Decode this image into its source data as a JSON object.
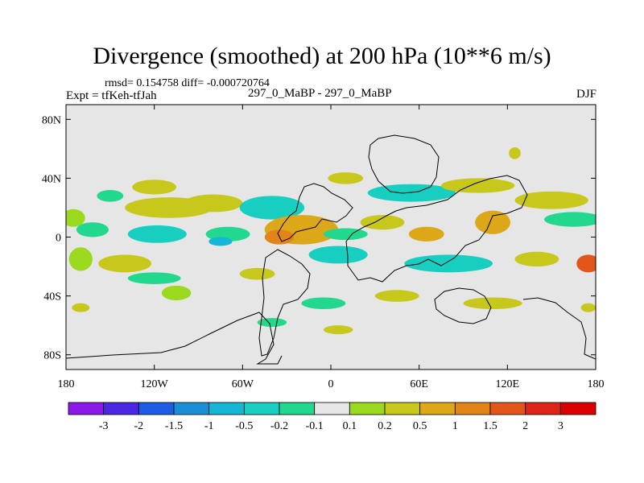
{
  "header": {
    "title": "Divergence (smoothed) at 200 hPa (10**6 m/s)",
    "stats": "rmsd= 0.154758 diff= -0.000720764",
    "experiment": "Expt = tfKeh-tfJah",
    "comparison": "297_0_MaBP - 297_0_MaBP",
    "season": "DJF"
  },
  "chart_data": {
    "type": "heatmap",
    "title": "Divergence (smoothed) at 200 hPa (10**6 m/s)",
    "xlabel": "",
    "ylabel": "",
    "xlim": [
      -180,
      180
    ],
    "ylim": [
      -90,
      90
    ],
    "x_ticks": [
      {
        "value": -180,
        "label": "180"
      },
      {
        "value": -120,
        "label": "120W"
      },
      {
        "value": -60,
        "label": "60W"
      },
      {
        "value": 0,
        "label": "0"
      },
      {
        "value": 60,
        "label": "60E"
      },
      {
        "value": 120,
        "label": "120E"
      },
      {
        "value": 180,
        "label": "180"
      }
    ],
    "y_ticks": [
      {
        "value": 80,
        "label": "80N"
      },
      {
        "value": 40,
        "label": "40N"
      },
      {
        "value": 0,
        "label": "0"
      },
      {
        "value": -40,
        "label": "40S"
      },
      {
        "value": -80,
        "label": "80S"
      }
    ],
    "background_color": "#e6e6e6",
    "colorbar": {
      "labels": [
        "-3",
        "-2",
        "-1.5",
        "-1",
        "-0.5",
        "-0.2",
        "-0.1",
        "0.1",
        "0.2",
        "0.5",
        "1",
        "1.5",
        "2",
        "3"
      ],
      "colors": [
        "#8b1ae8",
        "#4a27e0",
        "#1c5de4",
        "#1b8ed8",
        "#16b7d6",
        "#18cec0",
        "#22d88e",
        "#e6e6e6",
        "#9bd91f",
        "#c8c71c",
        "#dca81a",
        "#e2841a",
        "#e2561a",
        "#dc2518",
        "#d80000"
      ]
    },
    "anomaly_regions": [
      {
        "lon": -175,
        "lat": 13,
        "rlon": 8,
        "rlat": 6,
        "value": 0.15
      },
      {
        "lon": -162,
        "lat": 5,
        "rlon": 11,
        "rlat": 5,
        "value": -0.15
      },
      {
        "lon": -150,
        "lat": 28,
        "rlon": 9,
        "rlat": 4,
        "value": -0.15
      },
      {
        "lon": -120,
        "lat": 34,
        "rlon": 15,
        "rlat": 5,
        "value": 0.2
      },
      {
        "lon": -110,
        "lat": 20,
        "rlon": 30,
        "rlat": 7,
        "value": 0.35
      },
      {
        "lon": -118,
        "lat": 2,
        "rlon": 20,
        "rlat": 6,
        "value": -0.3
      },
      {
        "lon": -70,
        "lat": 2,
        "rlon": 15,
        "rlat": 5,
        "value": -0.2
      },
      {
        "lon": -75,
        "lat": -3,
        "rlon": 8,
        "rlat": 3,
        "value": -0.7
      },
      {
        "lon": -80,
        "lat": 23,
        "rlon": 20,
        "rlat": 6,
        "value": 0.35
      },
      {
        "lon": -40,
        "lat": 20,
        "rlon": 22,
        "rlat": 8,
        "value": -0.25
      },
      {
        "lon": -50,
        "lat": -25,
        "rlon": 12,
        "rlat": 4,
        "value": 0.3
      },
      {
        "lon": -140,
        "lat": -18,
        "rlon": 18,
        "rlat": 6,
        "value": 0.3
      },
      {
        "lon": -120,
        "lat": -28,
        "rlon": 18,
        "rlat": 4,
        "value": -0.15
      },
      {
        "lon": -105,
        "lat": -38,
        "rlon": 10,
        "rlat": 5,
        "value": 0.15
      },
      {
        "lon": -170,
        "lat": -15,
        "rlon": 8,
        "rlat": 8,
        "value": 0.15
      },
      {
        "lon": -20,
        "lat": 5,
        "rlon": 25,
        "rlat": 10,
        "value": 0.8
      },
      {
        "lon": -35,
        "lat": 0,
        "rlon": 10,
        "rlat": 5,
        "value": 1.1
      },
      {
        "lon": 10,
        "lat": 2,
        "rlon": 15,
        "rlat": 4,
        "value": -0.2
      },
      {
        "lon": 5,
        "lat": -12,
        "rlon": 20,
        "rlat": 6,
        "value": -0.3
      },
      {
        "lon": 35,
        "lat": 10,
        "rlon": 15,
        "rlat": 5,
        "value": 0.3
      },
      {
        "lon": 55,
        "lat": 30,
        "rlon": 30,
        "rlat": 6,
        "value": -0.3
      },
      {
        "lon": 10,
        "lat": 40,
        "rlon": 12,
        "rlat": 4,
        "value": 0.3
      },
      {
        "lon": 65,
        "lat": 2,
        "rlon": 12,
        "rlat": 5,
        "value": 0.7
      },
      {
        "lon": 80,
        "lat": -18,
        "rlon": 30,
        "rlat": 6,
        "value": -0.3
      },
      {
        "lon": 110,
        "lat": 10,
        "rlon": 12,
        "rlat": 8,
        "value": 0.5
      },
      {
        "lon": 100,
        "lat": 35,
        "rlon": 25,
        "rlat": 5,
        "value": 0.3
      },
      {
        "lon": 150,
        "lat": 25,
        "rlon": 25,
        "rlat": 6,
        "value": 0.2
      },
      {
        "lon": 165,
        "lat": 12,
        "rlon": 20,
        "rlat": 5,
        "value": -0.15
      },
      {
        "lon": 140,
        "lat": -15,
        "rlon": 15,
        "rlat": 5,
        "value": 0.3
      },
      {
        "lon": 175,
        "lat": -18,
        "rlon": 8,
        "rlat": 6,
        "value": 1.5
      },
      {
        "lon": 45,
        "lat": -40,
        "rlon": 15,
        "rlat": 4,
        "value": 0.2
      },
      {
        "lon": -5,
        "lat": -45,
        "rlon": 15,
        "rlat": 4,
        "value": -0.2
      },
      {
        "lon": 110,
        "lat": -45,
        "rlon": 20,
        "rlat": 4,
        "value": 0.2
      },
      {
        "lon": -170,
        "lat": -48,
        "rlon": 6,
        "rlat": 3,
        "value": 0.2
      },
      {
        "lon": 175,
        "lat": -48,
        "rlon": 5,
        "rlat": 3,
        "value": 0.2
      },
      {
        "lon": 125,
        "lat": 57,
        "rlon": 4,
        "rlat": 4,
        "value": 0.2
      },
      {
        "lon": -40,
        "lat": -58,
        "rlon": 10,
        "rlat": 3,
        "value": -0.2
      },
      {
        "lon": 5,
        "lat": -63,
        "rlon": 10,
        "rlat": 3,
        "value": 0.2
      }
    ]
  }
}
